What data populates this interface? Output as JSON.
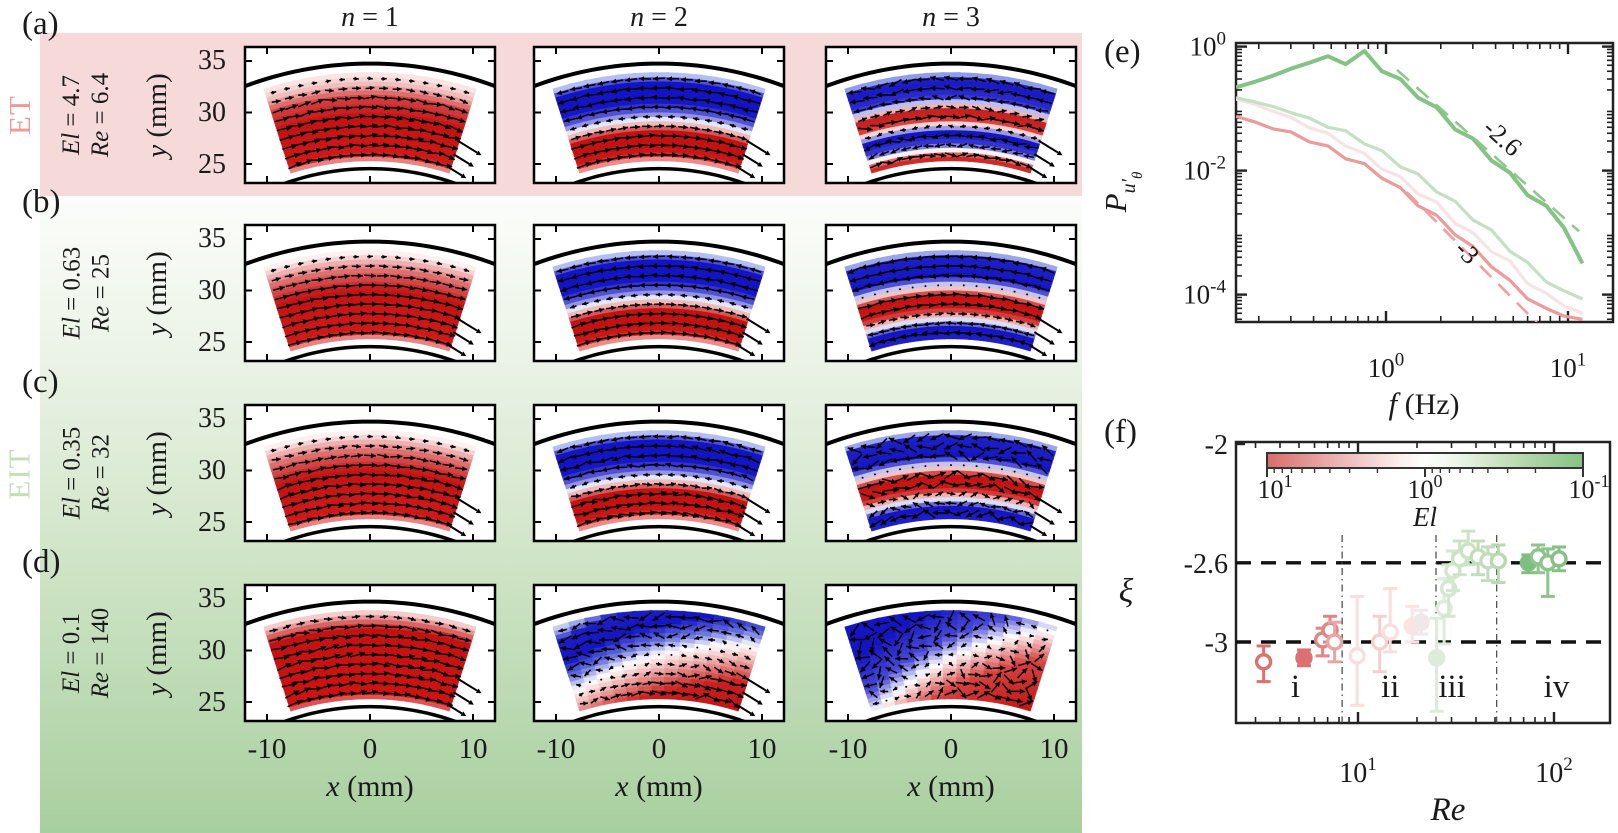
{
  "figure": {
    "regimes": {
      "et": "ET",
      "eit": "EIT"
    },
    "colors": {
      "et_band": "#f6dada",
      "eit_top": "#fcfdfb",
      "eit_bottom": "#a8cf9f",
      "et_text": "#ee9a9a",
      "eit_text": "#c2dfb6",
      "flow_red": "#c41212",
      "flow_blue": "#1414c6"
    }
  },
  "flow": {
    "col_headers": [
      {
        "var": "n",
        "rest": " = 1"
      },
      {
        "var": "n",
        "rest": " = 2"
      },
      {
        "var": "n",
        "rest": " = 3"
      }
    ],
    "ylabel": {
      "var": "y",
      "rest": " (mm)"
    },
    "xlabel": {
      "var": "x",
      "rest": " (mm)"
    },
    "yticks": [
      "35",
      "30",
      "25"
    ],
    "xticks": [
      "-10",
      "0",
      "10"
    ],
    "rows": [
      {
        "letter": "(a)",
        "regime": "ET",
        "el_var": "El",
        "el_rest": " = 4.7",
        "re_var": "Re",
        "re_rest": " = 6.4"
      },
      {
        "letter": "(b)",
        "regime": "EIT",
        "el_var": "El",
        "el_rest": " = 0.63",
        "re_var": "Re",
        "re_rest": " = 25"
      },
      {
        "letter": "(c)",
        "regime": "EIT",
        "el_var": "El",
        "el_rest": " = 0.35",
        "re_var": "Re",
        "re_rest": " = 32"
      },
      {
        "letter": "(d)",
        "regime": "EIT",
        "el_var": "El",
        "el_rest": " = 0.1",
        "re_var": "Re",
        "re_rest": " = 140"
      }
    ],
    "panels": [
      {
        "id": "a1",
        "tilt": 0,
        "chaos": 0.15,
        "jet": true,
        "bands": [
          [
            0,
            "#f3b3b3"
          ],
          [
            0.08,
            "#d01a1a"
          ],
          [
            0.5,
            "#c41212"
          ],
          [
            0.72,
            "#d64040"
          ],
          [
            0.88,
            "#f2c2c2"
          ],
          [
            1,
            "#fceeee"
          ]
        ]
      },
      {
        "id": "a2",
        "tilt": 0,
        "chaos": 0.1,
        "jet": true,
        "bands": [
          [
            0,
            "#f7caca"
          ],
          [
            0.06,
            "#e03030"
          ],
          [
            0.14,
            "#c41212"
          ],
          [
            0.34,
            "#c41212"
          ],
          [
            0.46,
            "#ffffff"
          ],
          [
            0.56,
            "#5a5ad8"
          ],
          [
            0.68,
            "#1414c6"
          ],
          [
            0.9,
            "#1414c6"
          ],
          [
            0.96,
            "#9aa6ec"
          ],
          [
            1,
            "#e2e6fa"
          ]
        ]
      },
      {
        "id": "a3",
        "tilt": 0,
        "chaos": 0.3,
        "jet": true,
        "bands": [
          [
            0,
            "#c41212"
          ],
          [
            0.07,
            "#e05555"
          ],
          [
            0.13,
            "#ffffff"
          ],
          [
            0.2,
            "#3a3ad2"
          ],
          [
            0.33,
            "#1414c4"
          ],
          [
            0.41,
            "#ffffff"
          ],
          [
            0.48,
            "#d83030"
          ],
          [
            0.57,
            "#c01414"
          ],
          [
            0.65,
            "#ffffff"
          ],
          [
            0.73,
            "#2e2ed0"
          ],
          [
            0.92,
            "#1414c4"
          ],
          [
            0.98,
            "#9aa8ea"
          ],
          [
            1,
            "#dfe4fa"
          ]
        ]
      },
      {
        "id": "b1",
        "tilt": 0,
        "chaos": 0.08,
        "jet": true,
        "bands": [
          [
            0,
            "#f3b3b3"
          ],
          [
            0.08,
            "#d01a1a"
          ],
          [
            0.55,
            "#c41212"
          ],
          [
            0.78,
            "#e07070"
          ],
          [
            0.94,
            "#f8dcdc"
          ],
          [
            1,
            "#ffffff"
          ]
        ]
      },
      {
        "id": "b2",
        "tilt": 0,
        "chaos": 0.07,
        "jet": true,
        "bands": [
          [
            0,
            "#f7caca"
          ],
          [
            0.06,
            "#e03030"
          ],
          [
            0.14,
            "#c41212"
          ],
          [
            0.34,
            "#c41212"
          ],
          [
            0.46,
            "#ffffff"
          ],
          [
            0.56,
            "#5a5ad8"
          ],
          [
            0.68,
            "#1414c6"
          ],
          [
            0.9,
            "#1414c6"
          ],
          [
            0.96,
            "#9aa6ec"
          ],
          [
            1,
            "#e2e6fa"
          ]
        ]
      },
      {
        "id": "b3",
        "tilt": 0,
        "chaos": 0.12,
        "jet": true,
        "bands": [
          [
            0,
            "#2020c8"
          ],
          [
            0.14,
            "#1414c4"
          ],
          [
            0.24,
            "#ffffff"
          ],
          [
            0.34,
            "#cc1a1a"
          ],
          [
            0.5,
            "#c41212"
          ],
          [
            0.6,
            "#ffffff"
          ],
          [
            0.7,
            "#1414c4"
          ],
          [
            0.93,
            "#2020c8"
          ],
          [
            0.98,
            "#a9b4ec"
          ],
          [
            1,
            "#e4e8fb"
          ]
        ]
      },
      {
        "id": "c1",
        "tilt": 0,
        "chaos": 0.14,
        "jet": true,
        "bands": [
          [
            0,
            "#f3b3b3"
          ],
          [
            0.08,
            "#d01a1a"
          ],
          [
            0.55,
            "#c41212"
          ],
          [
            0.78,
            "#e07070"
          ],
          [
            0.94,
            "#f8dcdc"
          ],
          [
            1,
            "#ffffff"
          ]
        ]
      },
      {
        "id": "c2",
        "tilt": 0,
        "chaos": 0.18,
        "jet": true,
        "bands": [
          [
            0,
            "#f7caca"
          ],
          [
            0.06,
            "#e03030"
          ],
          [
            0.14,
            "#c41212"
          ],
          [
            0.34,
            "#c41212"
          ],
          [
            0.46,
            "#ffffff"
          ],
          [
            0.56,
            "#5a5ad8"
          ],
          [
            0.68,
            "#1414c6"
          ],
          [
            0.9,
            "#1414c6"
          ],
          [
            0.96,
            "#9aa6ec"
          ],
          [
            1,
            "#e2e6fa"
          ]
        ]
      },
      {
        "id": "c3",
        "tilt": 0,
        "chaos": 0.55,
        "jet": true,
        "bands": [
          [
            0,
            "#2020c8"
          ],
          [
            0.14,
            "#1414c4"
          ],
          [
            0.24,
            "#ffffff"
          ],
          [
            0.34,
            "#cc1a1a"
          ],
          [
            0.5,
            "#c41212"
          ],
          [
            0.6,
            "#ffffff"
          ],
          [
            0.7,
            "#1414c4"
          ],
          [
            0.93,
            "#2020c8"
          ],
          [
            0.98,
            "#a9b4ec"
          ],
          [
            1,
            "#e4e8fb"
          ]
        ]
      },
      {
        "id": "d1",
        "tilt": 0,
        "chaos": 0.18,
        "jet": true,
        "bands": [
          [
            0,
            "#ea8080"
          ],
          [
            0.06,
            "#d01212"
          ],
          [
            0.8,
            "#c41212"
          ],
          [
            0.96,
            "#f0bcbc"
          ],
          [
            1,
            "#fbe6e6"
          ]
        ]
      },
      {
        "id": "d2",
        "tilt": 0.35,
        "chaos": 0.45,
        "jet": true,
        "bands": [
          [
            0,
            "#c01414"
          ],
          [
            0.22,
            "#cc2020"
          ],
          [
            0.42,
            "#f4c6c6"
          ],
          [
            0.5,
            "#ffffff"
          ],
          [
            0.6,
            "#6a74dc"
          ],
          [
            0.72,
            "#1414c4"
          ],
          [
            0.88,
            "#1e1ec8"
          ],
          [
            0.95,
            "#aab6ee"
          ],
          [
            1,
            "#e8ecfc"
          ]
        ]
      },
      {
        "id": "d3",
        "tilt": 0.5,
        "chaos": 0.9,
        "jet": false,
        "bands": [
          [
            0,
            "#c01414"
          ],
          [
            0.3,
            "#d84040"
          ],
          [
            0.48,
            "#ffffff"
          ],
          [
            0.6,
            "#4a4ad6"
          ],
          [
            0.8,
            "#1414c4"
          ],
          [
            1,
            "#1616c6"
          ]
        ]
      }
    ]
  },
  "chart_data": [
    {
      "type": "line",
      "panel_label": "(e)",
      "xlabel_var": "f",
      "xlabel_rest": " (Hz)",
      "ylabel": {
        "base": "P",
        "sub": "u′",
        "subsub": "θ"
      },
      "xlim": [
        0.15,
        17.7
      ],
      "ylim": [
        3.6e-05,
        1.15
      ],
      "log_x": true,
      "log_y": true,
      "xticks": [
        {
          "b": "10",
          "e": "0",
          "v": 1
        },
        {
          "b": "10",
          "e": "1",
          "v": 10
        }
      ],
      "yticks": [
        {
          "b": "10",
          "e": "0",
          "v": 1
        },
        {
          "b": "10",
          "e": "-2",
          "v": 0.01
        },
        {
          "b": "10",
          "e": "-4",
          "v": 0.0001
        }
      ],
      "x": [
        0.15,
        0.19,
        0.24,
        0.3,
        0.38,
        0.48,
        0.6,
        0.76,
        0.95,
        1.2,
        1.5,
        1.9,
        2.4,
        3.0,
        3.8,
        4.8,
        6.0,
        7.6,
        9.5,
        12
      ],
      "series": [
        {
          "name": "El = 4.7",
          "color": "#ec9a9a",
          "width": 3.2,
          "values": [
            0.075,
            0.061,
            0.047,
            0.042,
            0.029,
            0.025,
            0.0155,
            0.013,
            0.0075,
            0.0053,
            0.0027,
            0.0019,
            0.00092,
            0.0006,
            0.00028,
            0.00017,
            8.5e-05,
            6e-05,
            4.5e-05,
            4e-05
          ]
        },
        {
          "name": "El = 0.63",
          "color": "#f8e3e3",
          "width": 3.2,
          "values": [
            0.142,
            0.118,
            0.09,
            0.072,
            0.049,
            0.04,
            0.025,
            0.019,
            0.0105,
            0.008,
            0.0042,
            0.0031,
            0.0014,
            0.001,
            0.00049,
            0.00035,
            0.00015,
            0.000105,
            6.6e-05,
            5e-05
          ]
        },
        {
          "name": "El = 0.35",
          "color": "#c4dfc4",
          "width": 3.2,
          "values": [
            0.15,
            0.128,
            0.108,
            0.086,
            0.07,
            0.05,
            0.044,
            0.027,
            0.021,
            0.0115,
            0.0088,
            0.0045,
            0.0032,
            0.0016,
            0.0011,
            0.0005,
            0.00033,
            0.00016,
            0.000115,
            8.5e-05
          ]
        },
        {
          "name": "El = 0.1",
          "color": "#85c285",
          "width": 4,
          "values": [
            0.22,
            0.27,
            0.34,
            0.44,
            0.55,
            0.7,
            0.52,
            0.85,
            0.4,
            0.3,
            0.15,
            0.105,
            0.046,
            0.033,
            0.0145,
            0.0092,
            0.004,
            0.0027,
            0.0012,
            0.00032
          ]
        }
      ],
      "guides": [
        {
          "label": "-2.6",
          "color": "#8cc88c",
          "x1": 1.15,
          "y1": 0.42,
          "x2": 11.5,
          "y2": 0.00105,
          "lx": 3.35,
          "ly": 0.045,
          "rot": 42
        },
        {
          "label": "-3",
          "color": "#efa0a0",
          "x1": 1.3,
          "y1": 0.0045,
          "x2": 7.2,
          "y2": 2.9e-05,
          "lx": 2.35,
          "ly": 0.00052,
          "rot": 46
        }
      ]
    },
    {
      "type": "scatter",
      "panel_label": "(f)",
      "xlabel": "Re",
      "ylabel": "ξ",
      "xlim": [
        2.38,
        193
      ],
      "ylim": [
        -3.41,
        -2
      ],
      "log_x": true,
      "xticks": [
        {
          "b": "10",
          "e": "1",
          "v": 10
        },
        {
          "b": "10",
          "e": "2",
          "v": 100
        }
      ],
      "yticks": [
        {
          "label": "-2",
          "v": -2
        },
        {
          "label": "-2.6",
          "v": -2.6
        },
        {
          "label": "-3",
          "v": -3
        }
      ],
      "hlines": [
        -2.6,
        -3
      ],
      "vlines": [
        8.3,
        25,
        51
      ],
      "region_labels": [
        {
          "text": "i",
          "re": 4.8
        },
        {
          "text": "ii",
          "re": 14.6
        },
        {
          "text": "iii",
          "re": 30.2
        },
        {
          "text": "iv",
          "re": 103
        }
      ],
      "colorbar": {
        "label": "El",
        "ticks": [
          {
            "b": "10",
            "e": "1",
            "v": 10
          },
          {
            "b": "10",
            "e": "0",
            "v": 1
          },
          {
            "b": "10",
            "e": "-1",
            "v": 0.1
          }
        ],
        "left_value": 10,
        "right_value": 0.1,
        "stops": [
          [
            0,
            "#d96b6b"
          ],
          [
            0.18,
            "#e9a6a6"
          ],
          [
            0.42,
            "#fbeeee"
          ],
          [
            0.5,
            "#ffffff"
          ],
          [
            0.6,
            "#edf5ea"
          ],
          [
            0.8,
            "#b7d9ae"
          ],
          [
            1,
            "#85c285"
          ]
        ]
      },
      "points": [
        [
          3.3,
          -3.1,
          0.1,
          0.08,
          "#dd7070",
          0
        ],
        [
          5.3,
          -3.08,
          0.04,
          0.04,
          "#dd7070",
          1
        ],
        [
          6.6,
          -2.99,
          0.08,
          0.06,
          "#e28484",
          0
        ],
        [
          7.2,
          -2.94,
          0.06,
          0.07,
          "#e28484",
          0
        ],
        [
          7.6,
          -3.0,
          0.1,
          0.1,
          "#eaa4a4",
          0
        ],
        [
          9.9,
          -3.07,
          0.25,
          0.3,
          "#f8dede",
          0
        ],
        [
          12.9,
          -3.0,
          0.15,
          0.13,
          "#f5cfcf",
          0
        ],
        [
          14.6,
          -2.95,
          0.1,
          0.22,
          "#f8dede",
          0
        ],
        [
          18.9,
          -2.92,
          0.08,
          0.1,
          "#f9e3e3",
          1
        ],
        [
          21,
          -2.9,
          0.06,
          0.06,
          "#f2e7e7",
          1
        ],
        [
          25.2,
          -3.08,
          0.27,
          0.2,
          "#dcecd8",
          1
        ],
        [
          27.5,
          -2.83,
          0.18,
          0.15,
          "#dcecd8",
          0
        ],
        [
          29,
          -2.73,
          0.14,
          0.12,
          "#d2e7cd",
          0
        ],
        [
          30.5,
          -2.64,
          0.1,
          0.1,
          "#d2e7cd",
          0
        ],
        [
          33,
          -2.58,
          0.08,
          0.09,
          "#cbe3c5",
          0
        ],
        [
          36.5,
          -2.54,
          0.07,
          0.1,
          "#cbe3c5",
          0
        ],
        [
          41,
          -2.57,
          0.09,
          0.08,
          "#c2ddbb",
          0
        ],
        [
          46,
          -2.59,
          0.1,
          0.07,
          "#c2ddbb",
          0
        ],
        [
          52,
          -2.59,
          0.11,
          0.08,
          "#b8d8b0",
          0
        ],
        [
          74,
          -2.6,
          0.05,
          0.04,
          "#7fbe7f",
          1
        ],
        [
          83,
          -2.57,
          0.08,
          0.06,
          "#8cc48c",
          0
        ],
        [
          93,
          -2.6,
          0.17,
          0.07,
          "#8cc48c",
          0
        ],
        [
          106,
          -2.58,
          0.06,
          0.06,
          "#85c185",
          0
        ]
      ]
    }
  ]
}
